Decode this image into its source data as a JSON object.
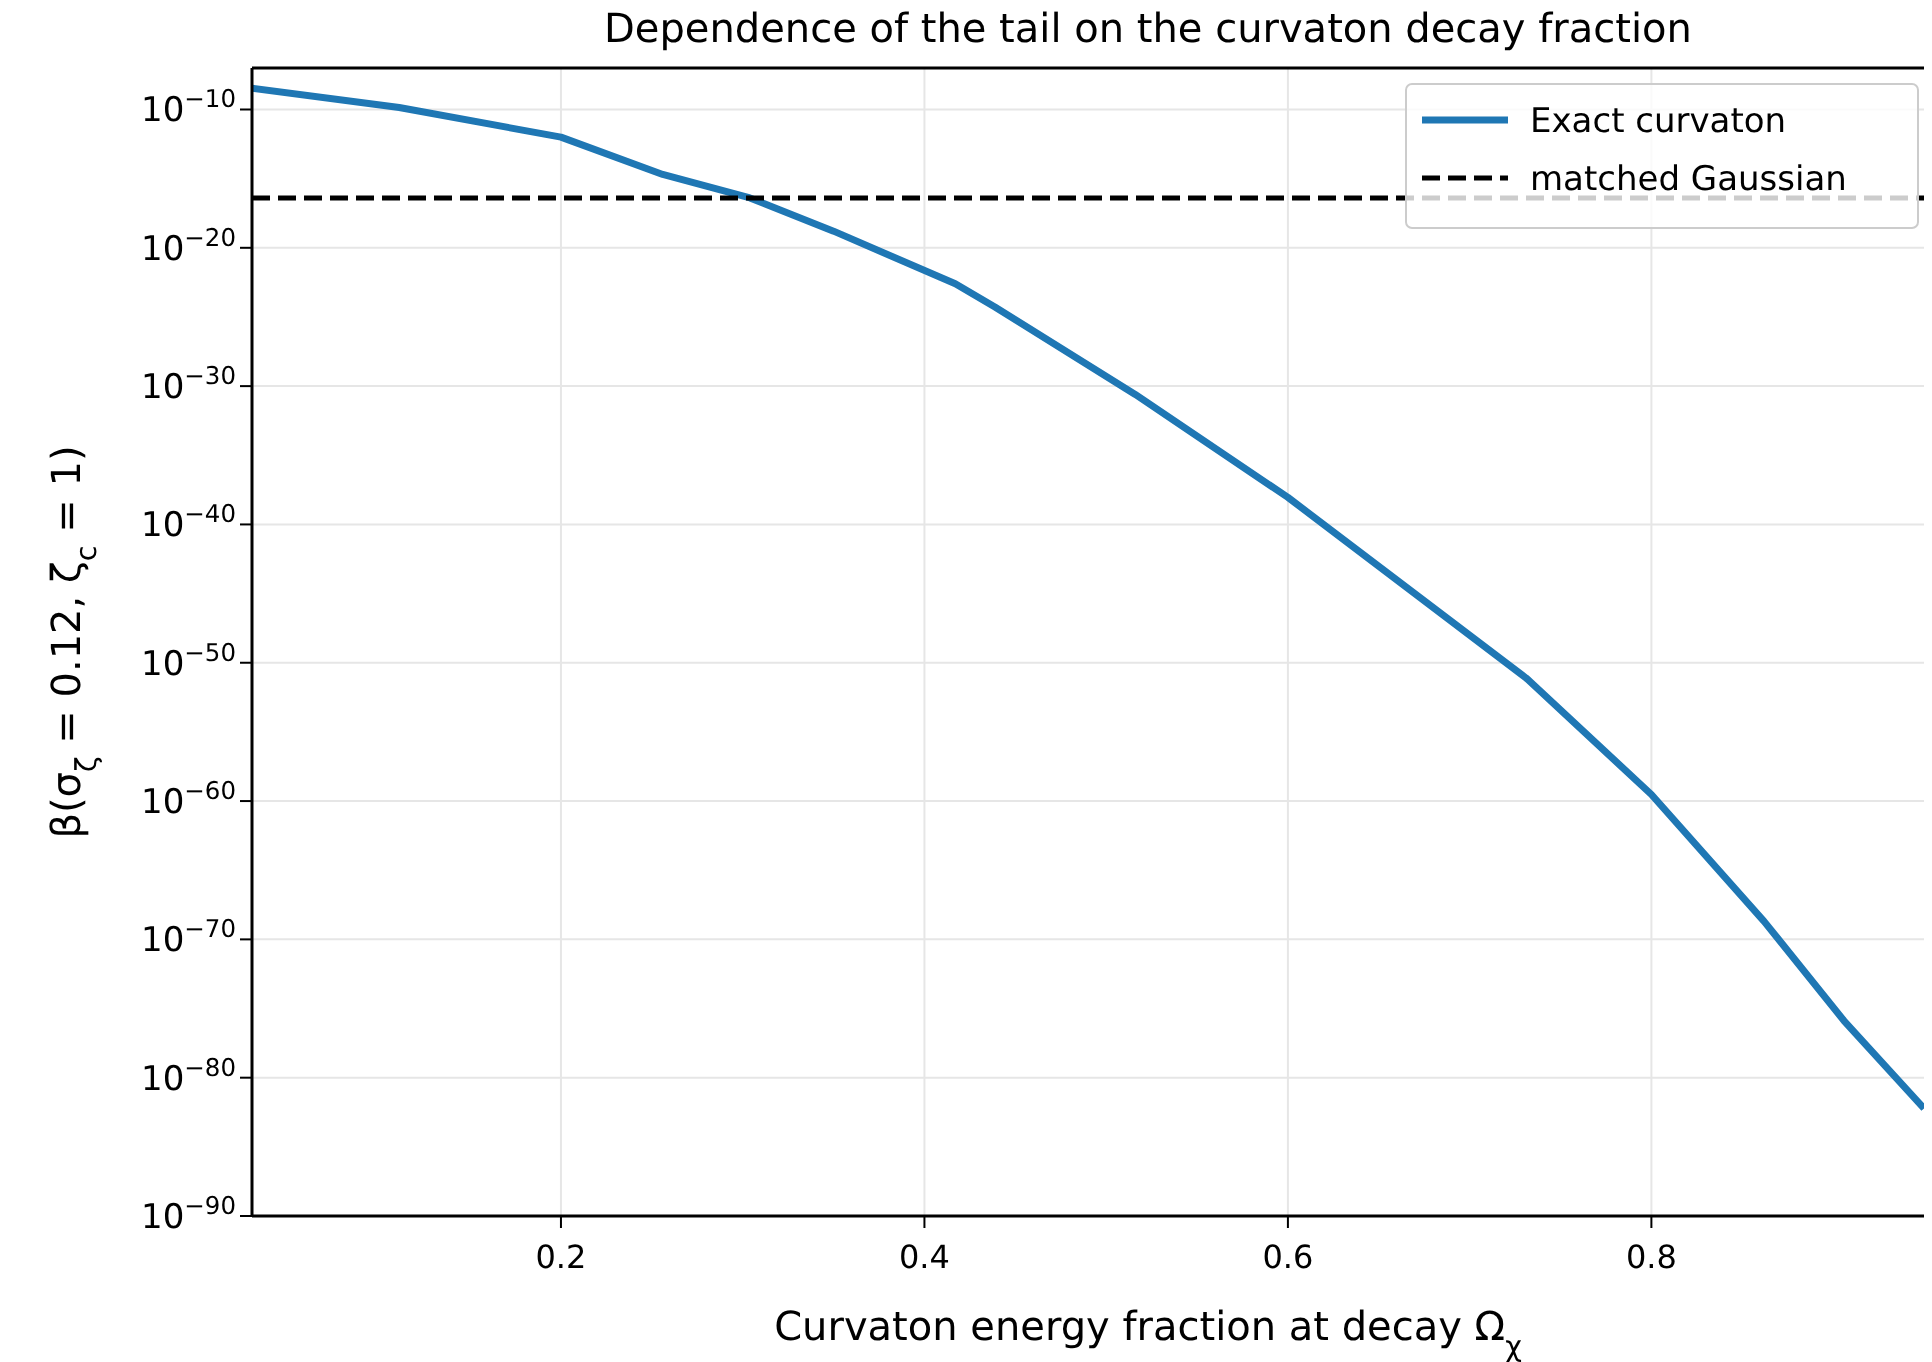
{
  "chart_data": {
    "type": "line",
    "title": "Dependence of the tail on the curvaton decay fraction",
    "xlabel": "Curvaton energy fraction at decay Ω$_{χ}$",
    "ylabel": "β(σ$_{ζ}$ = 0.12, ζ$_{c}$ = 1)",
    "log": "y",
    "grid": true,
    "legend": "top right",
    "marker": "none",
    "xlim": [
      0.03,
      0.95
    ],
    "xticks": [
      0.2,
      0.4,
      0.6,
      0.8
    ],
    "ylim": [
      1e-90,
      1e-07
    ],
    "yticks": [
      {
        "value": 1e-10,
        "label": "10$^{−10}$"
      },
      {
        "value": 1e-20,
        "label": "10$^{−20}$"
      },
      {
        "value": 1e-30,
        "label": "10$^{−30}$"
      },
      {
        "value": 1e-40,
        "label": "10$^{−40}$"
      },
      {
        "value": 1e-50,
        "label": "10$^{−50}$"
      },
      {
        "value": 1e-60,
        "label": "10$^{−60}$"
      },
      {
        "value": 1e-70,
        "label": "10$^{−70}$"
      },
      {
        "value": 1e-80,
        "label": "10$^{−80}$"
      },
      {
        "value": 1e-90,
        "label": "10$^{−90}$"
      }
    ],
    "series": [
      {
        "name": "Exact curvaton",
        "color": "#1f77b4",
        "line_style": "solid",
        "x": [
          0.03,
          0.111,
          0.2,
          0.256,
          0.304,
          0.35,
          0.417,
          0.439,
          0.516,
          0.6,
          0.731,
          0.8,
          0.862,
          0.906,
          0.95
        ],
        "values": [
          3.4e-09,
          1.4e-10,
          1e-12,
          2e-15,
          4e-17,
          1.6e-19,
          2.5e-23,
          5e-25,
          2.5e-31,
          9e-39,
          8e-52,
          3e-60,
          2e-69,
          1.3e-76,
          6e-83
        ]
      },
      {
        "name": "matched Gaussian",
        "color": "#000000",
        "line_style": "dashed",
        "x": [
          0.03,
          0.95
        ],
        "values": [
          4e-17,
          4e-17
        ]
      }
    ]
  }
}
